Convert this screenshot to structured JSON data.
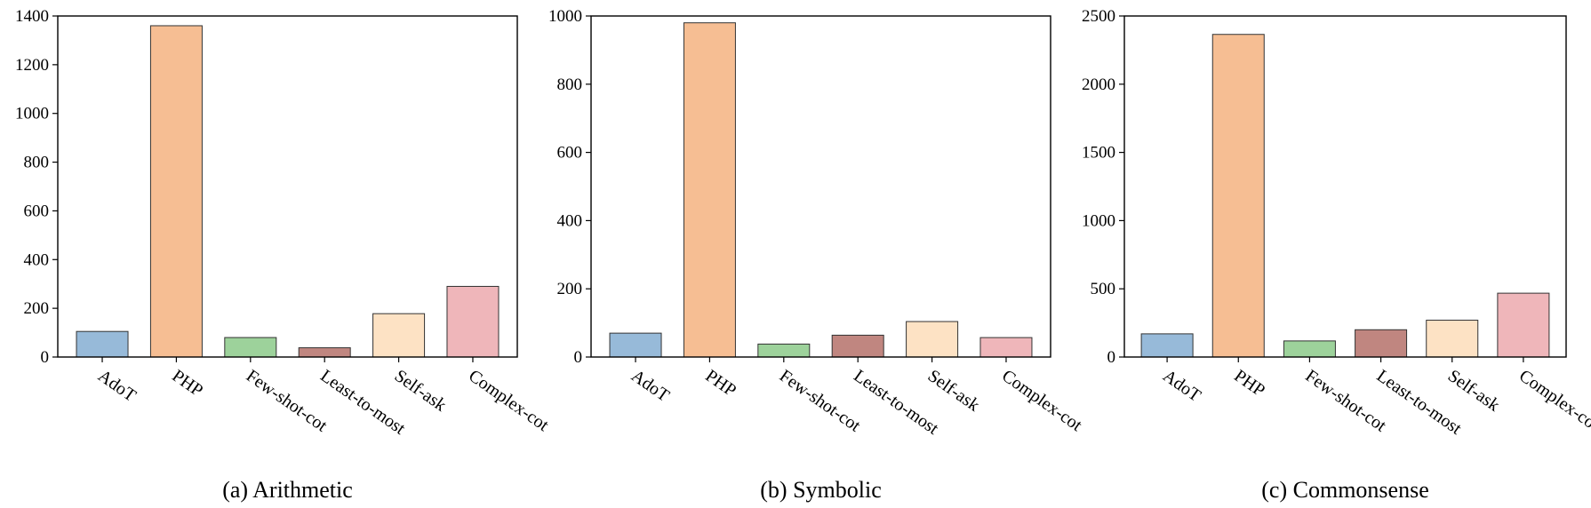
{
  "colors": {
    "AdoT": "#97bad9",
    "PHP": "#f6be93",
    "Few-shot-cot": "#9dd29b",
    "Least-to-most": "#c08680",
    "Self-ask": "#fde2c4",
    "Complex-cot": "#efb6ba",
    "edge": "#333333",
    "axis": "#000000"
  },
  "chart_data": [
    {
      "type": "bar",
      "caption": "(a) Arithmetic",
      "categories": [
        "AdoT",
        "PHP",
        "Few-shot-cot",
        "Least-to-most",
        "Self-ask",
        "Complex-cot"
      ],
      "values": [
        105,
        1360,
        80,
        38,
        178,
        290
      ],
      "ylim": [
        0,
        1400
      ],
      "yticks": [
        0,
        200,
        400,
        600,
        800,
        1000,
        1200,
        1400
      ]
    },
    {
      "type": "bar",
      "caption": "(b) Symbolic",
      "categories": [
        "AdoT",
        "PHP",
        "Few-shot-cot",
        "Least-to-most",
        "Self-ask",
        "Complex-cot"
      ],
      "values": [
        70,
        980,
        38,
        64,
        104,
        57
      ],
      "ylim": [
        0,
        1000
      ],
      "yticks": [
        0,
        200,
        400,
        600,
        800,
        1000
      ]
    },
    {
      "type": "bar",
      "caption": "(c) Commonsense",
      "categories": [
        "AdoT",
        "PHP",
        "Few-shot-cot",
        "Least-to-most",
        "Self-ask",
        "Complex-cot"
      ],
      "values": [
        170,
        2365,
        118,
        200,
        270,
        468
      ],
      "ylim": [
        0,
        2500
      ],
      "yticks": [
        0,
        500,
        1000,
        1500,
        2000,
        2500
      ]
    }
  ]
}
